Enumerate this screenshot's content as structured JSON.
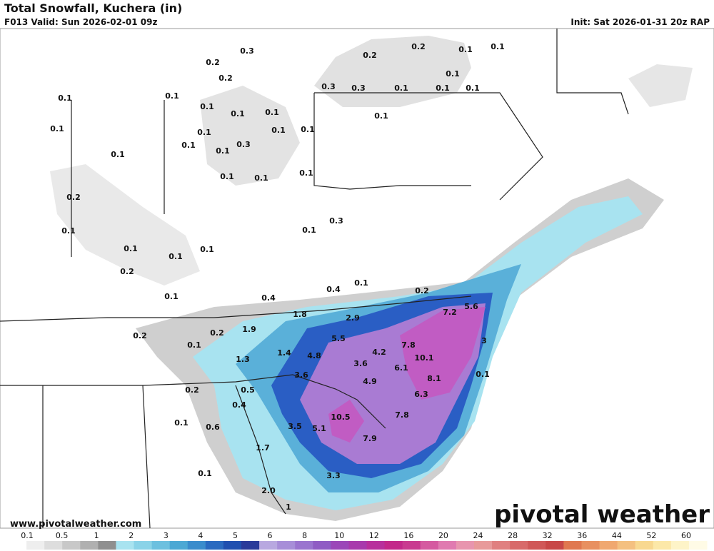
{
  "header": {
    "title": "Total Snowfall, Kuchera (in)",
    "valid": "F013 Valid: Sun 2026-02-01 09z",
    "init": "Init: Sat 2026-01-31 20z RAP"
  },
  "map_labels": [
    "0.3",
    "0.2",
    "0.2",
    "0.2",
    "0.2",
    "0.1",
    "0.1",
    "0.1",
    "0.3",
    "0.3",
    "0.1",
    "0.1",
    "0.1",
    "0.1",
    "0.1",
    "0.1",
    "0.1",
    "0.1",
    "0.1",
    "0.1",
    "0.1",
    "0.1",
    "0.1",
    "0.1",
    "0.3",
    "0.1",
    "0.1",
    "0.1",
    "0.1",
    "0.1",
    "0.2",
    "0.1",
    "0.1",
    "0.3",
    "0.1",
    "0.1",
    "0.1",
    "0.2",
    "0.1",
    "0.4",
    "0.4",
    "0.1",
    "0.2",
    "1.8",
    "2.9",
    "7.2",
    "5.6",
    "1.9",
    "0.2",
    "0.2",
    "5.5",
    "7.8",
    "0.1",
    "1.4",
    "4.8",
    "4.2",
    "10.1",
    "3",
    "1.3",
    "3.6",
    "6.1",
    "3.6",
    "4.9",
    "8.1",
    "0.1",
    "0.2",
    "0.5",
    "0.4",
    "6.3",
    "10.5",
    "7.8",
    "0.1",
    "0.6",
    "3.5",
    "5.1",
    "7.9",
    "1.7",
    "0.1",
    "3.3",
    "2.0",
    "1"
  ],
  "footer": {
    "website": "www.pivotalweather.com",
    "brand": "pivotal weather"
  },
  "colorbar": {
    "ticks": [
      "0.1",
      "0.5",
      "1",
      "2",
      "3",
      "4",
      "5",
      "6",
      "8",
      "10",
      "12",
      "16",
      "20",
      "24",
      "28",
      "32",
      "36",
      "44",
      "52",
      "60"
    ]
  }
}
